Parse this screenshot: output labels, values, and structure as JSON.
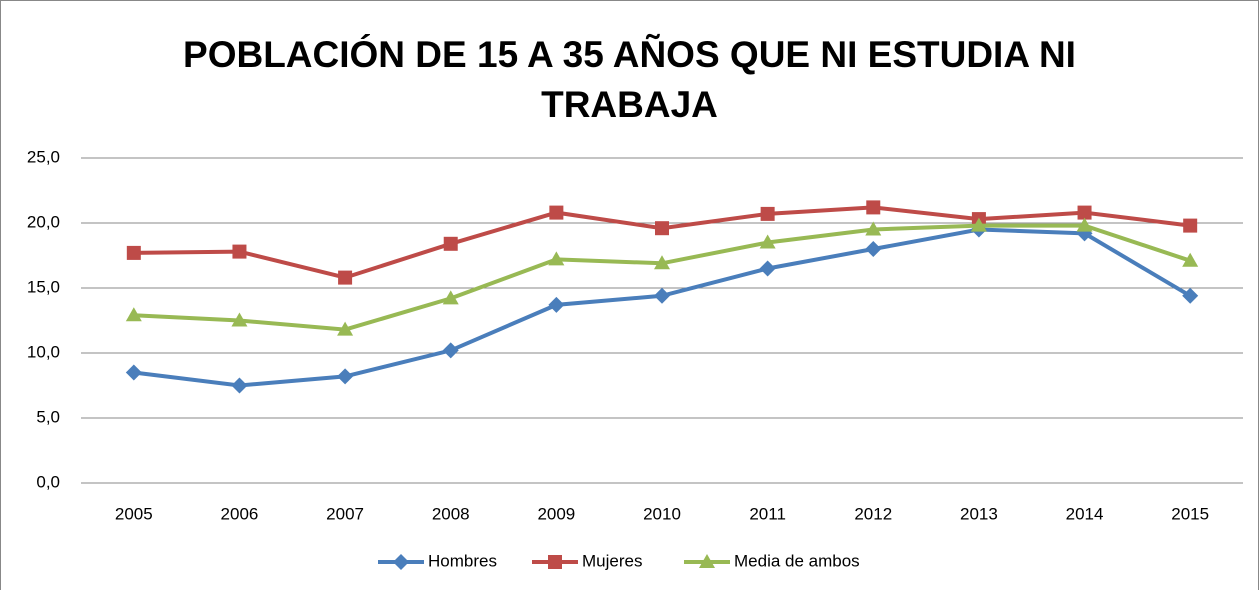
{
  "chart_data": {
    "type": "line",
    "title": "POBLACIÓN DE 15 A 35 AÑOS QUE NI ESTUDIA NI TRABAJA",
    "categories": [
      "2005",
      "2006",
      "2007",
      "2008",
      "2009",
      "2010",
      "2011",
      "2012",
      "2013",
      "2014",
      "2015"
    ],
    "series": [
      {
        "name": "Hombres",
        "color": "#4a7ebb",
        "marker": "diamond",
        "values": [
          8.5,
          7.5,
          8.2,
          10.2,
          13.7,
          14.4,
          16.5,
          18.0,
          19.5,
          19.2,
          14.4
        ]
      },
      {
        "name": "Mujeres",
        "color": "#be4b48",
        "marker": "square",
        "values": [
          17.7,
          17.8,
          15.8,
          18.4,
          20.8,
          19.6,
          20.7,
          21.2,
          20.3,
          20.8,
          19.8
        ]
      },
      {
        "name": "Media de ambos",
        "color": "#98b954",
        "marker": "triangle",
        "values": [
          12.9,
          12.5,
          11.8,
          14.2,
          17.2,
          16.9,
          18.5,
          19.5,
          19.8,
          19.8,
          17.1
        ]
      }
    ],
    "ylim": [
      0,
      25
    ],
    "yticks": [
      {
        "value": 0,
        "label": "0,0"
      },
      {
        "value": 5,
        "label": "5,0"
      },
      {
        "value": 10,
        "label": "10,0"
      },
      {
        "value": 15,
        "label": "15,0"
      },
      {
        "value": 20,
        "label": "20,0"
      },
      {
        "value": 25,
        "label": "25,0"
      }
    ],
    "grid": true,
    "legend": "bottom"
  }
}
